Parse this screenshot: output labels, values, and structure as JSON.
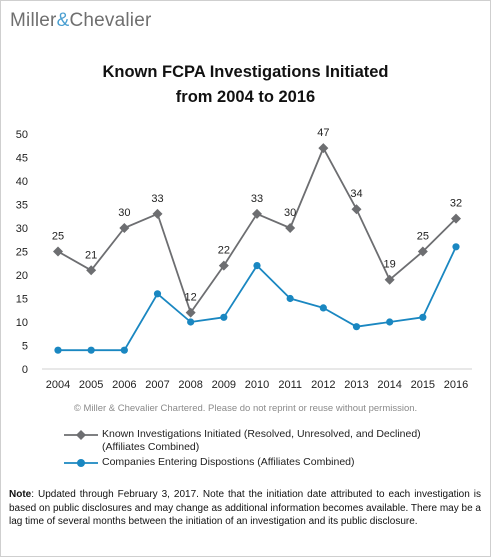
{
  "brand": {
    "name_left": "Miller",
    "ampersand": "&",
    "name_right": "Chevalier"
  },
  "chart_data": {
    "type": "line",
    "title_line1": "Known FCPA Investigations Initiated",
    "title_line2": "from 2004 to 2016",
    "categories": [
      "2004",
      "2005",
      "2006",
      "2007",
      "2008",
      "2009",
      "2010",
      "2011",
      "2012",
      "2013",
      "2014",
      "2015",
      "2016"
    ],
    "ylim": [
      0,
      50
    ],
    "yticks": [
      0,
      5,
      10,
      15,
      20,
      25,
      30,
      35,
      40,
      45,
      50
    ],
    "grid": false,
    "legend_position": "bottom",
    "series": [
      {
        "name": "Known Investigations Initiated (Resolved, Unresolved, and Declined)",
        "name_line2": "(Affiliates Combined)",
        "values": [
          25,
          21,
          30,
          33,
          12,
          22,
          33,
          30,
          47,
          34,
          19,
          25,
          32
        ],
        "color": "#6d6e71",
        "marker": "diamond",
        "data_labels": true
      },
      {
        "name": "Companies Entering Dispostions (Affiliates Combined)",
        "values": [
          4,
          4,
          4,
          16,
          10,
          11,
          22,
          15,
          13,
          9,
          10,
          11,
          26
        ],
        "color": "#1a87c1",
        "marker": "circle",
        "data_labels": false
      }
    ]
  },
  "copyright": "© Miller & Chevalier Chartered. Please do not reprint or reuse without permission.",
  "note": {
    "label": "Note",
    "text": ": Updated through February 3, 2017. Note that the initiation date attributed to each investigation is based on public disclosures and may change as additional information becomes available. There may be a lag time of several months between the initiation of an investigation and its public disclosure."
  }
}
